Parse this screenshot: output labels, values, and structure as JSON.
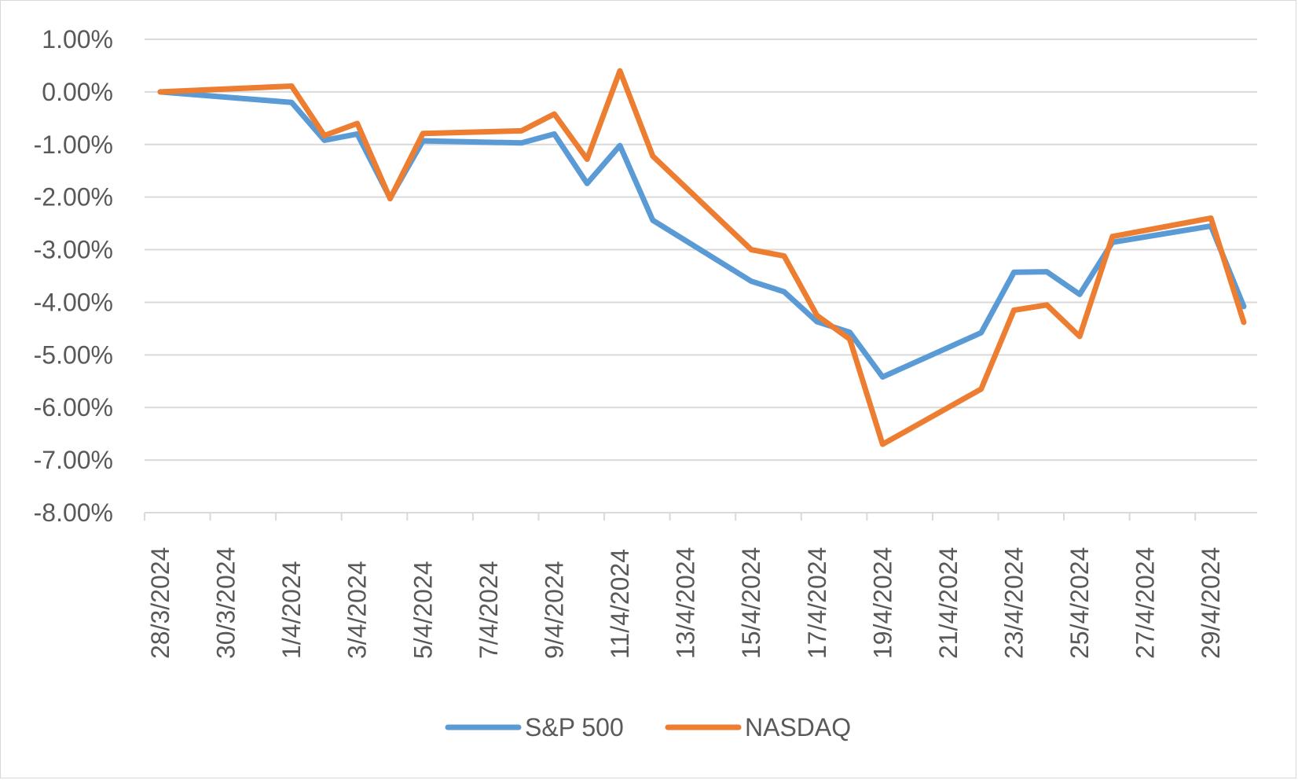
{
  "chart_data": {
    "type": "line",
    "title": "",
    "xlabel": "",
    "ylabel": "",
    "x_axis": {
      "type": "date",
      "start": "2024-03-28",
      "end": "2024-04-30",
      "tick_labels": [
        "28/3/2024",
        "30/3/2024",
        "1/4/2024",
        "3/4/2024",
        "5/4/2024",
        "7/4/2024",
        "9/4/2024",
        "11/4/2024",
        "13/4/2024",
        "15/4/2024",
        "17/4/2024",
        "19/4/2024",
        "21/4/2024",
        "23/4/2024",
        "25/4/2024",
        "27/4/2024",
        "29/4/2024"
      ],
      "tick_dates": [
        "2024-03-28",
        "2024-03-30",
        "2024-04-01",
        "2024-04-03",
        "2024-04-05",
        "2024-04-07",
        "2024-04-09",
        "2024-04-11",
        "2024-04-13",
        "2024-04-15",
        "2024-04-17",
        "2024-04-19",
        "2024-04-21",
        "2024-04-23",
        "2024-04-25",
        "2024-04-27",
        "2024-04-29"
      ]
    },
    "y_axis": {
      "min": -8.0,
      "max": 1.0,
      "step": 1.0,
      "tick_labels": [
        "1.00%",
        "0.00%",
        "-1.00%",
        "-2.00%",
        "-3.00%",
        "-4.00%",
        "-5.00%",
        "-6.00%",
        "-7.00%",
        "-8.00%"
      ],
      "tick_values": [
        1,
        0,
        -1,
        -2,
        -3,
        -4,
        -5,
        -6,
        -7,
        -8
      ]
    },
    "grid": true,
    "legend": {
      "position": "bottom",
      "entries": [
        "S&P 500",
        "NASDAQ"
      ]
    },
    "series": [
      {
        "name": "S&P 500",
        "color": "#5b9bd5",
        "points": [
          {
            "x": "2024-03-28",
            "y": 0.0
          },
          {
            "x": "2024-04-01",
            "y": -0.2
          },
          {
            "x": "2024-04-02",
            "y": -0.92
          },
          {
            "x": "2024-04-03",
            "y": -0.8
          },
          {
            "x": "2024-04-04",
            "y": -2.02
          },
          {
            "x": "2024-04-05",
            "y": -0.93
          },
          {
            "x": "2024-04-08",
            "y": -0.97
          },
          {
            "x": "2024-04-09",
            "y": -0.8
          },
          {
            "x": "2024-04-10",
            "y": -1.74
          },
          {
            "x": "2024-04-11",
            "y": -1.02
          },
          {
            "x": "2024-04-12",
            "y": -2.44
          },
          {
            "x": "2024-04-15",
            "y": -3.6
          },
          {
            "x": "2024-04-16",
            "y": -3.8
          },
          {
            "x": "2024-04-17",
            "y": -4.37
          },
          {
            "x": "2024-04-18",
            "y": -4.57
          },
          {
            "x": "2024-04-19",
            "y": -5.42
          },
          {
            "x": "2024-04-22",
            "y": -4.58
          },
          {
            "x": "2024-04-23",
            "y": -3.43
          },
          {
            "x": "2024-04-24",
            "y": -3.42
          },
          {
            "x": "2024-04-25",
            "y": -3.85
          },
          {
            "x": "2024-04-26",
            "y": -2.86
          },
          {
            "x": "2024-04-29",
            "y": -2.55
          },
          {
            "x": "2024-04-30",
            "y": -4.08
          }
        ]
      },
      {
        "name": "NASDAQ",
        "color": "#ed7d31",
        "points": [
          {
            "x": "2024-03-28",
            "y": 0.0
          },
          {
            "x": "2024-04-01",
            "y": 0.11
          },
          {
            "x": "2024-04-02",
            "y": -0.83
          },
          {
            "x": "2024-04-03",
            "y": -0.6
          },
          {
            "x": "2024-04-04",
            "y": -2.03
          },
          {
            "x": "2024-04-05",
            "y": -0.79
          },
          {
            "x": "2024-04-08",
            "y": -0.74
          },
          {
            "x": "2024-04-09",
            "y": -0.42
          },
          {
            "x": "2024-04-10",
            "y": -1.28
          },
          {
            "x": "2024-04-11",
            "y": 0.4
          },
          {
            "x": "2024-04-12",
            "y": -1.22
          },
          {
            "x": "2024-04-15",
            "y": -3.0
          },
          {
            "x": "2024-04-16",
            "y": -3.12
          },
          {
            "x": "2024-04-17",
            "y": -4.25
          },
          {
            "x": "2024-04-18",
            "y": -4.7
          },
          {
            "x": "2024-04-19",
            "y": -6.7
          },
          {
            "x": "2024-04-22",
            "y": -5.65
          },
          {
            "x": "2024-04-23",
            "y": -4.15
          },
          {
            "x": "2024-04-24",
            "y": -4.05
          },
          {
            "x": "2024-04-25",
            "y": -4.65
          },
          {
            "x": "2024-04-26",
            "y": -2.75
          },
          {
            "x": "2024-04-29",
            "y": -2.4
          },
          {
            "x": "2024-04-30",
            "y": -4.38
          }
        ]
      }
    ]
  }
}
